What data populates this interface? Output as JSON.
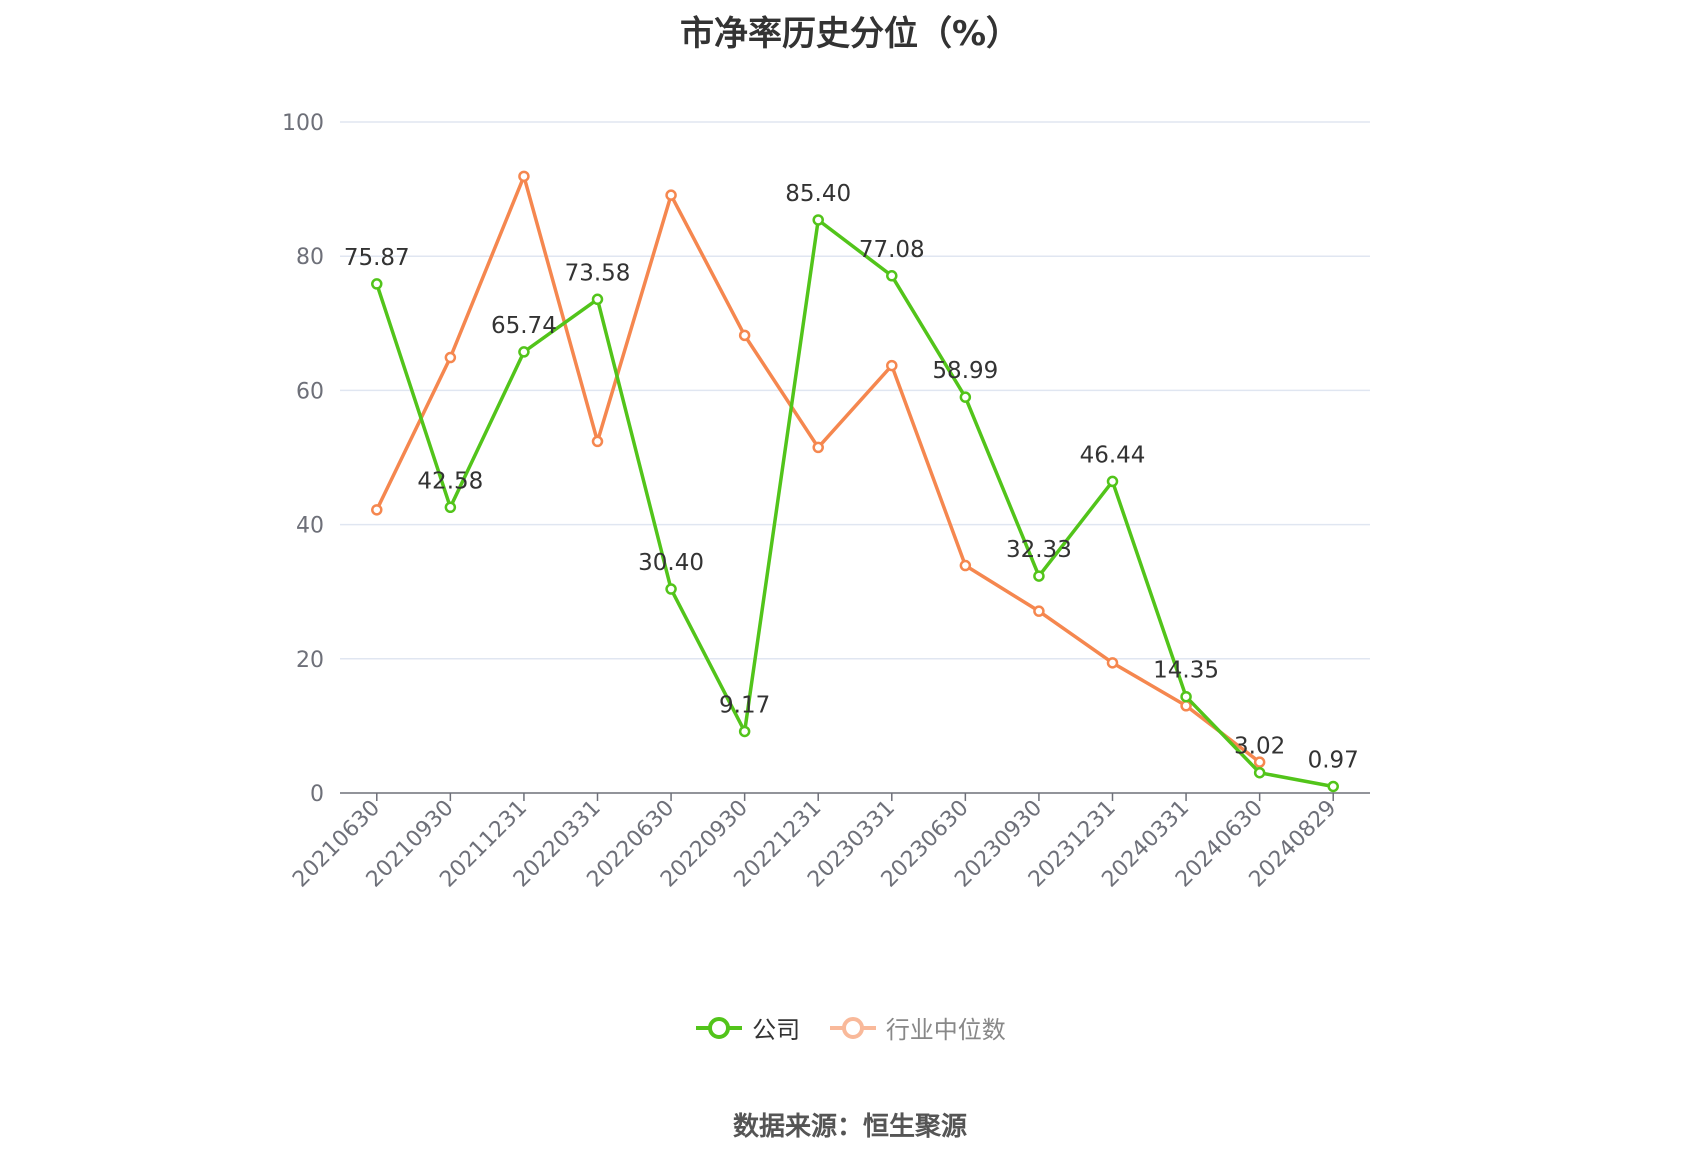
{
  "chart_data": {
    "type": "line",
    "title": "市净率历史分位（%）",
    "categories": [
      "20210630",
      "20210930",
      "20211231",
      "20220331",
      "20220630",
      "20220930",
      "20221231",
      "20230331",
      "20230630",
      "20230930",
      "20231231",
      "20240331",
      "20240630",
      "20240829"
    ],
    "series": [
      {
        "name": "公司",
        "color": "#52c41a",
        "values": [
          75.87,
          42.58,
          65.74,
          73.58,
          30.4,
          9.17,
          85.4,
          77.08,
          58.99,
          32.33,
          46.44,
          14.35,
          3.02,
          0.97
        ],
        "labels": [
          "75.87",
          "42.58",
          "65.74",
          "73.58",
          "30.40",
          "9.17",
          "85.40",
          "77.08",
          "58.99",
          "32.33",
          "46.44",
          "14.35",
          "3.02",
          "0.97"
        ]
      },
      {
        "name": "行业中位数",
        "color": "#f5874f",
        "values": [
          42.2,
          64.9,
          91.9,
          52.4,
          89.1,
          68.2,
          51.5,
          63.7,
          33.9,
          27.1,
          19.4,
          13.0,
          4.6,
          null
        ]
      }
    ],
    "ylim": [
      0,
      100
    ],
    "yticks": [
      "0",
      "20",
      "40",
      "60",
      "80",
      "100"
    ],
    "grid": true,
    "legend_position": "bottom"
  },
  "source": "数据来源：恒生聚源"
}
